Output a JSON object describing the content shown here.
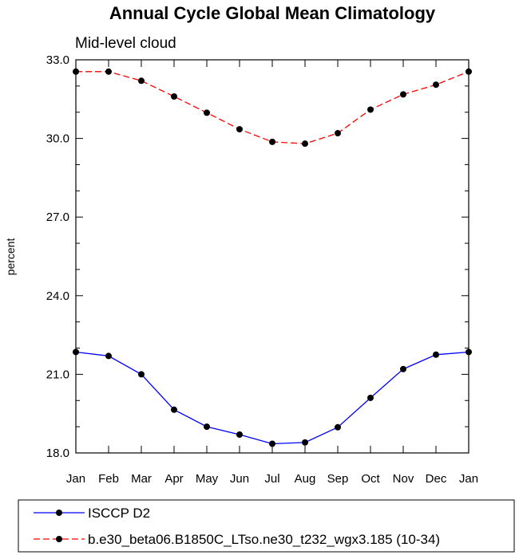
{
  "chart_data": {
    "type": "line",
    "title": "Annual Cycle Global Mean Climatology",
    "subtitle": "Mid-level cloud",
    "xlabel": "",
    "ylabel": "percent",
    "categories": [
      "Jan",
      "Feb",
      "Mar",
      "Apr",
      "May",
      "Jun",
      "Jul",
      "Aug",
      "Sep",
      "Oct",
      "Nov",
      "Dec",
      "Jan"
    ],
    "ylim": [
      18.0,
      33.0
    ],
    "yticks": [
      "18.0",
      "21.0",
      "24.0",
      "27.0",
      "30.0",
      "33.0"
    ],
    "grid": false,
    "legend_position": "bottom",
    "series": [
      {
        "name": "ISCCP D2",
        "color": "#0000ff",
        "line_style": "solid",
        "marker": "filled-circle",
        "values": [
          21.85,
          21.7,
          21.0,
          19.65,
          19.0,
          18.7,
          18.35,
          18.4,
          18.98,
          20.1,
          21.2,
          21.75,
          21.85
        ]
      },
      {
        "name": "b.e30_beta06.B1850C_LTso.ne30_t232_wgx3.185 (10-34)",
        "color": "#ff0000",
        "line_style": "dashed",
        "marker": "filled-circle",
        "values": [
          32.55,
          32.55,
          32.2,
          31.6,
          30.98,
          30.35,
          29.87,
          29.8,
          30.2,
          31.1,
          31.68,
          32.05,
          32.55
        ]
      }
    ]
  }
}
